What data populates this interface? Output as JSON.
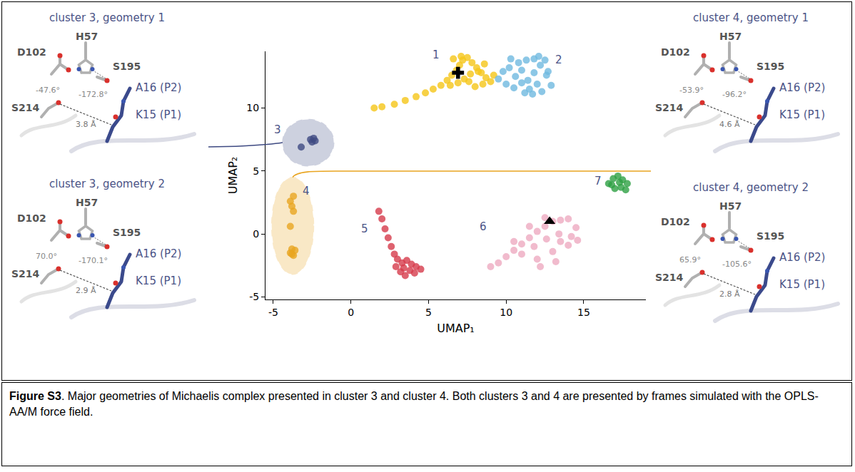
{
  "chart_data": {
    "type": "scatter",
    "xlabel": "UMAP₁",
    "ylabel": "UMAP₂",
    "xlim": [
      -5.5,
      19
    ],
    "ylim": [
      -5.2,
      14.5
    ],
    "xticks": [
      -5,
      0,
      5,
      10,
      15
    ],
    "yticks": [
      -5,
      0,
      5,
      10
    ],
    "grid": false,
    "series": [
      {
        "color": "#f5c518",
        "marker": "circle",
        "x": [
          2.0,
          2.8,
          3.5,
          4.2,
          4.8,
          5.3,
          5.8,
          6.2,
          6.5,
          6.8,
          7.0,
          7.2,
          7.5,
          7.8,
          8.1,
          8.4,
          8.7,
          9.0,
          6.4,
          6.9,
          7.3,
          7.7,
          8.2,
          8.6,
          6.6,
          7.1,
          7.6,
          8.0,
          8.5,
          9.2,
          1.5
        ],
        "y": [
          10.1,
          10.3,
          10.6,
          10.9,
          11.2,
          11.5,
          11.8,
          12.2,
          12.6,
          13.0,
          13.4,
          13.8,
          14.0,
          13.6,
          13.2,
          12.8,
          12.4,
          12.1,
          11.8,
          12.0,
          12.3,
          12.7,
          12.9,
          13.5,
          13.9,
          14.1,
          12.1,
          11.7,
          11.9,
          12.6,
          10.0
        ]
      },
      {
        "color": "#6fb9e0",
        "marker": "circle",
        "x": [
          9.5,
          9.8,
          10.2,
          10.6,
          11.0,
          11.4,
          11.8,
          12.2,
          12.6,
          12.9,
          10.0,
          10.5,
          11.0,
          11.5,
          12.0,
          12.5,
          10.3,
          10.8,
          11.3,
          11.8,
          12.3,
          12.7,
          11.2,
          11.7,
          12.1
        ],
        "y": [
          12.3,
          12.9,
          13.2,
          12.5,
          13.0,
          12.2,
          12.8,
          13.4,
          12.6,
          11.8,
          11.9,
          11.6,
          12.0,
          11.5,
          11.9,
          13.8,
          13.9,
          13.6,
          13.8,
          13.9,
          11.3,
          12.9,
          11.2,
          11.1,
          14.1
        ]
      },
      {
        "color": "#3e4a82",
        "marker": "circle",
        "line_style": "dashed",
        "x": [
          -2.6,
          -2.4,
          -2.5,
          -2.3,
          -3.2
        ],
        "y": [
          7.5,
          7.6,
          7.3,
          7.4,
          6.9
        ]
      },
      {
        "color": "#e9a521",
        "marker": "circle",
        "line_style": "dashed",
        "x": [
          -3.9,
          -3.8,
          -3.7,
          -3.8,
          -3.9,
          -3.7,
          -3.6,
          -3.8,
          -3.9,
          -3.7
        ],
        "y": [
          2.6,
          2.2,
          1.8,
          -1.2,
          -1.5,
          -1.7,
          -1.3,
          -1.6,
          0.6,
          3.0
        ]
      },
      {
        "color": "#d63b4b",
        "marker": "circle",
        "x": [
          1.8,
          2.0,
          2.2,
          2.4,
          2.6,
          2.8,
          3.0,
          3.3,
          3.6,
          3.9,
          4.2,
          4.5,
          3.2,
          3.5,
          3.8,
          4.1,
          2.9,
          3.4
        ],
        "y": [
          1.8,
          1.2,
          0.4,
          -0.3,
          -1.0,
          -1.6,
          -2.0,
          -2.3,
          -2.1,
          -2.4,
          -2.6,
          -2.8,
          -3.0,
          -3.3,
          -2.9,
          -3.1,
          -2.6,
          -2.7
        ]
      },
      {
        "color": "#eeaac0",
        "marker": "circle",
        "x": [
          9.0,
          9.5,
          10.0,
          10.5,
          11.0,
          11.5,
          12.0,
          12.5,
          13.0,
          13.5,
          14.0,
          14.5,
          11.0,
          11.8,
          12.6,
          13.4,
          14.2,
          12.0,
          13.0,
          14.0,
          10.5,
          11.5,
          12.5,
          13.5,
          12.2,
          13.2,
          14.6
        ],
        "y": [
          -2.6,
          -2.3,
          -1.8,
          -1.3,
          -0.8,
          -0.3,
          0.2,
          0.6,
          1.0,
          1.1,
          1.2,
          0.5,
          -1.6,
          -1.0,
          -0.4,
          0.0,
          -0.2,
          -2.0,
          -1.4,
          -0.9,
          -0.6,
          0.6,
          1.3,
          -0.6,
          -2.6,
          -2.2,
          -0.5
        ]
      },
      {
        "color": "#2ea043",
        "marker": "circle",
        "x": [
          16.6,
          16.9,
          17.2,
          17.5,
          17.8,
          17.0,
          17.4,
          17.7,
          16.8,
          17.3
        ],
        "y": [
          4.0,
          4.4,
          4.6,
          4.3,
          4.0,
          3.6,
          3.7,
          3.5,
          3.9,
          4.1
        ]
      },
      {
        "color": "#000000",
        "marker": "cross",
        "x": [
          6.9
        ],
        "y": [
          12.8
        ]
      },
      {
        "color": "#000000",
        "marker": "triangle",
        "x": [
          12.8
        ],
        "y": [
          1.0
        ]
      }
    ],
    "annotations": [
      {
        "text": "1",
        "x": 5.5,
        "y": 14.2
      },
      {
        "text": "2",
        "x": 13.4,
        "y": 13.8
      },
      {
        "text": "3",
        "x": -4.7,
        "y": 8.3
      },
      {
        "text": "4",
        "x": -2.9,
        "y": 3.4
      },
      {
        "text": "5",
        "x": 0.9,
        "y": 0.4
      },
      {
        "text": "6",
        "x": 8.5,
        "y": 0.6
      },
      {
        "text": "7",
        "x": 15.9,
        "y": 4.2
      }
    ]
  },
  "insets": {
    "left": [
      {
        "title": "cluster 3, geometry 1",
        "residues": [
          "D102",
          "H57",
          "S195",
          "S214"
        ],
        "substrate": [
          "A16 (P2)",
          "K15 (P1)"
        ],
        "angles": [
          "-47.6°",
          "-172.8°"
        ],
        "distance": "3.8 Å"
      },
      {
        "title": "cluster 3, geometry 2",
        "residues": [
          "D102",
          "H57",
          "S195",
          "S214"
        ],
        "substrate": [
          "A16 (P2)",
          "K15 (P1)"
        ],
        "angles": [
          "70.0°",
          "-170.1°"
        ],
        "distance": "2.9 Å"
      }
    ],
    "right": [
      {
        "title": "cluster 4, geometry 1",
        "residues": [
          "D102",
          "H57",
          "S195",
          "S214"
        ],
        "substrate": [
          "A16 (P2)",
          "K15 (P1)"
        ],
        "angles": [
          "-53.9°",
          "-96.2°"
        ],
        "distance": "4.6 Å"
      },
      {
        "title": "cluster 4, geometry 2",
        "residues": [
          "D102",
          "H57",
          "S195",
          "S214"
        ],
        "substrate": [
          "A16 (P2)",
          "K15 (P1)"
        ],
        "angles": [
          "65.9°",
          "-105.6°"
        ],
        "distance": "2.8 Å"
      }
    ]
  },
  "caption": {
    "label": "Figure S3",
    "text": ". Major geometries of Michaelis complex presented in cluster 3 and cluster 4. Both clusters 3 and 4 are presented by frames simulated with the OPLS-AA/M force field."
  }
}
